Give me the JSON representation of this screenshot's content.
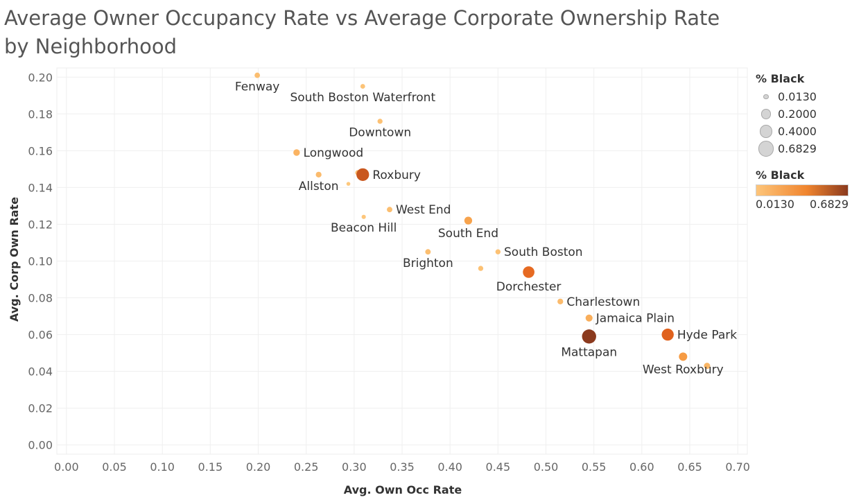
{
  "title": "Average Owner Occupancy Rate vs Average Corporate Ownership Rate by Neighborhood",
  "chart_data": {
    "type": "scatter",
    "title": "Average Owner Occupancy Rate vs Average Corporate Ownership Rate by Neighborhood",
    "xlabel": "Avg. Own Occ Rate",
    "ylabel": "Avg. Corp Own Rate",
    "xlim": [
      -0.01,
      0.71
    ],
    "ylim": [
      -0.005,
      0.205
    ],
    "x_ticks": [
      "0.00",
      "0.05",
      "0.10",
      "0.15",
      "0.20",
      "0.25",
      "0.30",
      "0.35",
      "0.40",
      "0.45",
      "0.50",
      "0.55",
      "0.60",
      "0.65",
      "0.70"
    ],
    "y_ticks": [
      "0.00",
      "0.02",
      "0.04",
      "0.06",
      "0.08",
      "0.10",
      "0.12",
      "0.14",
      "0.16",
      "0.18",
      "0.20"
    ],
    "grid": true,
    "size_and_color_field": "% Black",
    "color_range": [
      "#fdc57a",
      "#8b3a1e"
    ],
    "points": [
      {
        "label": "Fenway",
        "x": 0.199,
        "y": 0.201,
        "black": 0.05,
        "label_pos": "below"
      },
      {
        "label": "South Boston Waterfront",
        "x": 0.309,
        "y": 0.195,
        "black": 0.03,
        "label_pos": "below"
      },
      {
        "label": "Downtown",
        "x": 0.327,
        "y": 0.176,
        "black": 0.04,
        "label_pos": "below"
      },
      {
        "label": "Longwood",
        "x": 0.24,
        "y": 0.159,
        "black": 0.09,
        "label_pos": "right"
      },
      {
        "label": "Roxbury",
        "x": 0.309,
        "y": 0.147,
        "black": 0.52,
        "label_pos": "right"
      },
      {
        "label": "",
        "x": 0.304,
        "y": 0.148,
        "black": 0.05,
        "label_pos": "none"
      },
      {
        "label": "Allston",
        "x": 0.263,
        "y": 0.147,
        "black": 0.06,
        "label_pos": "below"
      },
      {
        "label": "",
        "x": 0.294,
        "y": 0.142,
        "black": 0.013,
        "label_pos": "none"
      },
      {
        "label": "West End",
        "x": 0.337,
        "y": 0.128,
        "black": 0.05,
        "label_pos": "right"
      },
      {
        "label": "Beacon Hill",
        "x": 0.31,
        "y": 0.124,
        "black": 0.02,
        "label_pos": "below"
      },
      {
        "label": "South End",
        "x": 0.419,
        "y": 0.122,
        "black": 0.15,
        "label_pos": "below"
      },
      {
        "label": "South Boston",
        "x": 0.45,
        "y": 0.105,
        "black": 0.04,
        "label_pos": "right"
      },
      {
        "label": "Brighton",
        "x": 0.377,
        "y": 0.105,
        "black": 0.05,
        "label_pos": "below"
      },
      {
        "label": "",
        "x": 0.432,
        "y": 0.096,
        "black": 0.04,
        "label_pos": "none"
      },
      {
        "label": "Dorchester",
        "x": 0.482,
        "y": 0.094,
        "black": 0.42,
        "label_pos": "below"
      },
      {
        "label": "Charlestown",
        "x": 0.515,
        "y": 0.078,
        "black": 0.06,
        "label_pos": "right"
      },
      {
        "label": "Jamaica Plain",
        "x": 0.545,
        "y": 0.069,
        "black": 0.11,
        "label_pos": "right"
      },
      {
        "label": "Mattapan",
        "x": 0.545,
        "y": 0.059,
        "black": 0.6829,
        "label_pos": "below"
      },
      {
        "label": "Hyde Park",
        "x": 0.627,
        "y": 0.06,
        "black": 0.46,
        "label_pos": "right"
      },
      {
        "label": "West Roxbury",
        "x": 0.643,
        "y": 0.048,
        "black": 0.18,
        "label_pos": "below"
      },
      {
        "label": "",
        "x": 0.668,
        "y": 0.043,
        "black": 0.08,
        "label_pos": "none"
      }
    ]
  },
  "legend": {
    "size_title": "% Black",
    "size_items": [
      {
        "label": "0.0130",
        "value": 0.013
      },
      {
        "label": "0.2000",
        "value": 0.2
      },
      {
        "label": "0.4000",
        "value": 0.4
      },
      {
        "label": "0.6829",
        "value": 0.6829
      }
    ],
    "color_title": "% Black",
    "color_min_label": "0.0130",
    "color_max_label": "0.6829"
  }
}
